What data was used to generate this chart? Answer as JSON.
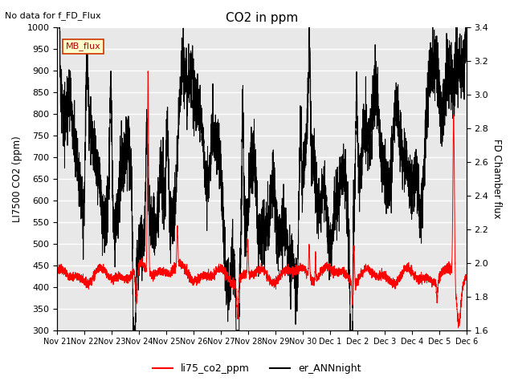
{
  "title": "CO2 in ppm",
  "top_left_text": "No data for f_FD_Flux",
  "ylabel_left": "LI7500 CO2 (ppm)",
  "ylabel_right": "FD Chamber flux",
  "ylim_left": [
    300,
    1000
  ],
  "ylim_right": [
    1.6,
    3.4
  ],
  "xtick_labels": [
    "Nov 21",
    "Nov 22",
    "Nov 23",
    "Nov 24",
    "Nov 25",
    "Nov 26",
    "Nov 27",
    "Nov 28",
    "Nov 29",
    "Nov 30",
    "Dec 1",
    "Dec 2",
    "Dec 3",
    "Dec 4",
    "Dec 5",
    "Dec 6"
  ],
  "yticks_left": [
    300,
    350,
    400,
    450,
    500,
    550,
    600,
    650,
    700,
    750,
    800,
    850,
    900,
    950,
    1000
  ],
  "yticks_right": [
    1.6,
    1.8,
    2.0,
    2.2,
    2.4,
    2.6,
    2.8,
    3.0,
    3.2,
    3.4
  ],
  "legend_labels": [
    "li75_co2_ppm",
    "er_ANNnight"
  ],
  "mb_flux_box_color": "#ffffcc",
  "mb_flux_box_edge": "#cc3300",
  "background_color": "#e8e8e8",
  "grid_color": "white",
  "line_color_red": "red",
  "line_color_black": "black",
  "figsize": [
    6.4,
    4.8
  ],
  "dpi": 100,
  "n_points": 5000,
  "random_seed": 7
}
